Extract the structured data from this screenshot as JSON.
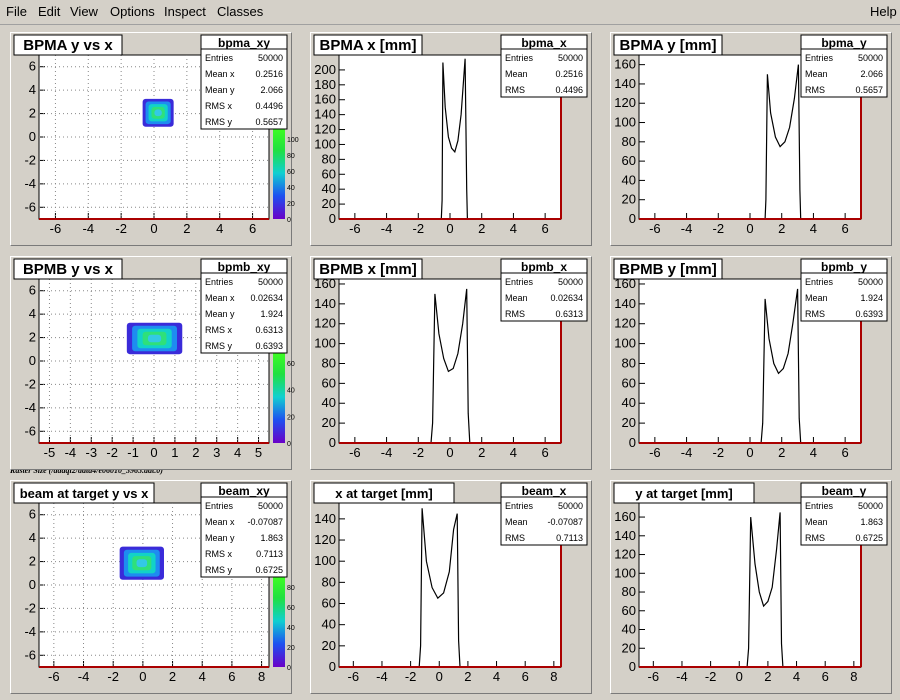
{
  "menu": {
    "file": "File",
    "edit": "Edit",
    "view": "View",
    "options": "Options",
    "inspect": "Inspect",
    "classes": "Classes",
    "help": "Help"
  },
  "raster_note": "Raster Size (/adaql2/data4/e06010_3965.dat.0)",
  "pads": [
    {
      "title": "BPMA y vs x",
      "kind": "h2",
      "stats_name": "bpma_xy",
      "stats": [
        [
          "Entries",
          "50000"
        ],
        [
          "Mean x",
          "0.2516"
        ],
        [
          "Mean y",
          "2.066"
        ],
        [
          "RMS x",
          "0.4496"
        ],
        [
          "RMS y",
          "0.5657"
        ]
      ],
      "x_ticks": [
        "-6",
        "-4",
        "-2",
        "0",
        "2",
        "4",
        "6"
      ],
      "y_ticks": [
        "-6",
        "-4",
        "-2",
        "0",
        "2",
        "4",
        "6"
      ],
      "z_ticks": [
        "0",
        "20",
        "40",
        "60",
        "80",
        "100"
      ],
      "chart_data": {
        "type": "heatmap",
        "xlim": [
          -7,
          7
        ],
        "ylim": [
          -7,
          7
        ],
        "center": [
          0.2516,
          2.066
        ],
        "rms": [
          0.4496,
          0.5657
        ]
      }
    },
    {
      "title": "BPMA x [mm]",
      "kind": "h1",
      "stats_name": "bpma_x",
      "stats": [
        [
          "Entries",
          "50000"
        ],
        [
          "Mean",
          "0.2516"
        ],
        [
          "RMS",
          "0.4496"
        ]
      ],
      "x_ticks": [
        "-6",
        "-4",
        "-2",
        "0",
        "2",
        "4",
        "6"
      ],
      "y_ticks": [
        "0",
        "20",
        "40",
        "60",
        "80",
        "100",
        "120",
        "140",
        "160",
        "180",
        "200"
      ],
      "chart_data": {
        "type": "line",
        "xlim": [
          -7,
          7
        ],
        "ylim": [
          0,
          220
        ],
        "points": [
          [
            -0.55,
            0
          ],
          [
            -0.5,
            25
          ],
          [
            -0.45,
            210
          ],
          [
            -0.3,
            150
          ],
          [
            -0.1,
            110
          ],
          [
            0.1,
            95
          ],
          [
            0.3,
            90
          ],
          [
            0.5,
            105
          ],
          [
            0.7,
            140
          ],
          [
            0.95,
            215
          ],
          [
            1.05,
            40
          ],
          [
            1.1,
            0
          ]
        ]
      }
    },
    {
      "title": "BPMA y [mm]",
      "kind": "h1",
      "stats_name": "bpma_y",
      "stats": [
        [
          "Entries",
          "50000"
        ],
        [
          "Mean",
          "2.066"
        ],
        [
          "RMS",
          "0.5657"
        ]
      ],
      "x_ticks": [
        "-6",
        "-4",
        "-2",
        "0",
        "2",
        "4",
        "6"
      ],
      "y_ticks": [
        "0",
        "20",
        "40",
        "60",
        "80",
        "100",
        "120",
        "140",
        "160"
      ],
      "chart_data": {
        "type": "line",
        "xlim": [
          -7,
          7
        ],
        "ylim": [
          0,
          170
        ],
        "points": [
          [
            0.95,
            0
          ],
          [
            1.0,
            20
          ],
          [
            1.1,
            150
          ],
          [
            1.3,
            110
          ],
          [
            1.6,
            85
          ],
          [
            1.9,
            75
          ],
          [
            2.2,
            80
          ],
          [
            2.5,
            95
          ],
          [
            2.8,
            125
          ],
          [
            3.05,
            160
          ],
          [
            3.15,
            30
          ],
          [
            3.2,
            0
          ]
        ]
      }
    },
    {
      "title": "BPMB y vs x",
      "kind": "h2",
      "stats_name": "bpmb_xy",
      "stats": [
        [
          "Entries",
          "50000"
        ],
        [
          "Mean x",
          "0.02634"
        ],
        [
          "Mean y",
          "1.924"
        ],
        [
          "RMS x",
          "0.6313"
        ],
        [
          "RMS y",
          "0.6393"
        ]
      ],
      "x_ticks": [
        "-5",
        "-4",
        "-3",
        "-2",
        "-1",
        "0",
        "1",
        "2",
        "3",
        "4",
        "5"
      ],
      "y_ticks": [
        "-6",
        "-4",
        "-2",
        "0",
        "2",
        "4",
        "6"
      ],
      "z_ticks": [
        "0",
        "20",
        "40",
        "60"
      ],
      "chart_data": {
        "type": "heatmap",
        "xlim": [
          -5.5,
          5.5
        ],
        "ylim": [
          -7,
          7
        ],
        "center": [
          0.02634,
          1.924
        ],
        "rms": [
          0.6313,
          0.6393
        ]
      }
    },
    {
      "title": "BPMB x [mm]",
      "kind": "h1",
      "stats_name": "bpmb_x",
      "stats": [
        [
          "Entries",
          "50000"
        ],
        [
          "Mean",
          "0.02634"
        ],
        [
          "RMS",
          "0.6313"
        ]
      ],
      "x_ticks": [
        "-6",
        "-4",
        "-2",
        "0",
        "2",
        "4",
        "6"
      ],
      "y_ticks": [
        "0",
        "20",
        "40",
        "60",
        "80",
        "100",
        "120",
        "140",
        "160"
      ],
      "chart_data": {
        "type": "line",
        "xlim": [
          -7,
          7
        ],
        "ylim": [
          0,
          165
        ],
        "points": [
          [
            -1.2,
            0
          ],
          [
            -1.1,
            20
          ],
          [
            -0.95,
            150
          ],
          [
            -0.7,
            110
          ],
          [
            -0.4,
            85
          ],
          [
            -0.1,
            72
          ],
          [
            0.2,
            75
          ],
          [
            0.5,
            90
          ],
          [
            0.8,
            120
          ],
          [
            1.05,
            155
          ],
          [
            1.15,
            30
          ],
          [
            1.25,
            0
          ]
        ]
      }
    },
    {
      "title": "BPMB y [mm]",
      "kind": "h1",
      "stats_name": "bpmb_y",
      "stats": [
        [
          "Entries",
          "50000"
        ],
        [
          "Mean",
          "1.924"
        ],
        [
          "RMS",
          "0.6393"
        ]
      ],
      "x_ticks": [
        "-6",
        "-4",
        "-2",
        "0",
        "2",
        "4",
        "6"
      ],
      "y_ticks": [
        "0",
        "20",
        "40",
        "60",
        "80",
        "100",
        "120",
        "140",
        "160"
      ],
      "chart_data": {
        "type": "line",
        "xlim": [
          -7,
          7
        ],
        "ylim": [
          0,
          165
        ],
        "points": [
          [
            0.7,
            0
          ],
          [
            0.8,
            20
          ],
          [
            0.95,
            145
          ],
          [
            1.2,
            105
          ],
          [
            1.5,
            80
          ],
          [
            1.8,
            70
          ],
          [
            2.1,
            75
          ],
          [
            2.4,
            90
          ],
          [
            2.7,
            120
          ],
          [
            3.0,
            155
          ],
          [
            3.1,
            25
          ],
          [
            3.2,
            0
          ]
        ]
      }
    },
    {
      "title": "beam at target y vs x",
      "kind": "h2",
      "stats_name": "beam_xy",
      "stats": [
        [
          "Entries",
          "50000"
        ],
        [
          "Mean x",
          "-0.07087"
        ],
        [
          "Mean y",
          "1.863"
        ],
        [
          "RMS x",
          "0.7113"
        ],
        [
          "RMS y",
          "0.6725"
        ]
      ],
      "x_ticks": [
        "-6",
        "-4",
        "-2",
        "0",
        "2",
        "4",
        "6",
        "8"
      ],
      "y_ticks": [
        "-6",
        "-4",
        "-2",
        "0",
        "2",
        "4",
        "6"
      ],
      "z_ticks": [
        "0",
        "20",
        "40",
        "60",
        "80"
      ],
      "chart_data": {
        "type": "heatmap",
        "xlim": [
          -7,
          8.5
        ],
        "ylim": [
          -7,
          7
        ],
        "center": [
          -0.07087,
          1.863
        ],
        "rms": [
          0.7113,
          0.6725
        ]
      }
    },
    {
      "title": "x at target [mm]",
      "kind": "h1",
      "stats_name": "beam_x",
      "stats": [
        [
          "Entries",
          "50000"
        ],
        [
          "Mean",
          "-0.07087"
        ],
        [
          "RMS",
          "0.7113"
        ]
      ],
      "x_ticks": [
        "-6",
        "-4",
        "-2",
        "0",
        "2",
        "4",
        "6",
        "8"
      ],
      "y_ticks": [
        "0",
        "20",
        "40",
        "60",
        "80",
        "100",
        "120",
        "140"
      ],
      "chart_data": {
        "type": "line",
        "xlim": [
          -7,
          8.5
        ],
        "ylim": [
          0,
          155
        ],
        "points": [
          [
            -1.4,
            0
          ],
          [
            -1.3,
            20
          ],
          [
            -1.2,
            150
          ],
          [
            -0.9,
            100
          ],
          [
            -0.5,
            75
          ],
          [
            -0.1,
            65
          ],
          [
            0.3,
            70
          ],
          [
            0.7,
            90
          ],
          [
            1.0,
            130
          ],
          [
            1.25,
            145
          ],
          [
            1.35,
            25
          ],
          [
            1.45,
            0
          ]
        ]
      }
    },
    {
      "title": "y at target [mm]",
      "kind": "h1",
      "stats_name": "beam_y",
      "stats": [
        [
          "Entries",
          "50000"
        ],
        [
          "Mean",
          "1.863"
        ],
        [
          "RMS",
          "0.6725"
        ]
      ],
      "x_ticks": [
        "-6",
        "-4",
        "-2",
        "0",
        "2",
        "4",
        "6",
        "8"
      ],
      "y_ticks": [
        "0",
        "20",
        "40",
        "60",
        "80",
        "100",
        "120",
        "140",
        "160"
      ],
      "chart_data": {
        "type": "line",
        "xlim": [
          -7,
          8.5
        ],
        "ylim": [
          0,
          175
        ],
        "points": [
          [
            0.55,
            0
          ],
          [
            0.65,
            20
          ],
          [
            0.8,
            160
          ],
          [
            1.1,
            110
          ],
          [
            1.4,
            80
          ],
          [
            1.7,
            65
          ],
          [
            2.0,
            70
          ],
          [
            2.3,
            85
          ],
          [
            2.6,
            125
          ],
          [
            2.85,
            165
          ],
          [
            2.95,
            25
          ],
          [
            3.05,
            0
          ]
        ]
      }
    }
  ]
}
